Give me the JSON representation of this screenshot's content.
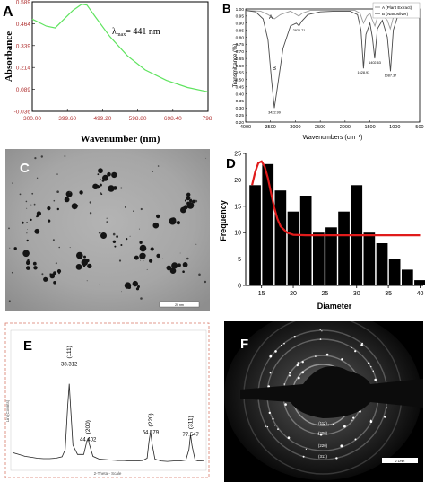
{
  "panels": {
    "a": "A",
    "b": "B",
    "c": "C",
    "d": "D",
    "e": "E",
    "f": "F"
  },
  "chart_data": [
    {
      "panel": "A",
      "type": "line",
      "xlabel": "Wavenumber (nm)",
      "ylabel": "Absorbance",
      "xlim": [
        300,
        798
      ],
      "ylim": [
        -0.036,
        0.589
      ],
      "xticks": [
        "300.00",
        "399.60",
        "499.20",
        "598.80",
        "698.40",
        "798."
      ],
      "yticks": [
        "0.589",
        "0.464",
        "0.339",
        "0.214",
        "0.089",
        "-0.036"
      ],
      "annotation": "λmax= 441 nm",
      "annotation_main": "λ",
      "annotation_sub": "max",
      "annotation_rest": "= 441 nm",
      "color": "#5fe35f",
      "x": [
        300,
        340,
        365,
        390,
        415,
        440,
        455,
        480,
        520,
        570,
        620,
        680,
        740,
        798
      ],
      "y": [
        0.49,
        0.45,
        0.44,
        0.49,
        0.54,
        0.575,
        0.57,
        0.5,
        0.39,
        0.28,
        0.2,
        0.14,
        0.1,
        0.075
      ]
    },
    {
      "panel": "B",
      "type": "line",
      "xlabel": "Wavenumbers (cm⁻¹)",
      "ylabel": "Transmittance (%)",
      "xlim": [
        4000,
        500
      ],
      "ylim": [
        0.2,
        1.0
      ],
      "xticks": [
        "4000",
        "3500",
        "3000",
        "2500",
        "2000",
        "1500",
        "1000",
        "500"
      ],
      "yticks": [
        "1.00",
        "0.95",
        "0.90",
        "0.85",
        "0.80",
        "0.75",
        "0.70",
        "0.65",
        "0.60",
        "0.55",
        "0.50",
        "0.45",
        "0.40",
        "0.35",
        "0.30",
        "0.25",
        "0.20"
      ],
      "legend": [
        "A (Plant Extract)",
        "B (Nanosilver)"
      ],
      "legend_position": "top-right",
      "curve_labels": [
        "A",
        "B"
      ],
      "peak_labels": [
        "3422.99",
        "2926.71",
        "1628.93",
        "1402.63",
        "1087.37"
      ],
      "series": [
        {
          "name": "A (Plant Extract)",
          "color": "#9a9a9a",
          "x": [
            4000,
            3700,
            3550,
            3420,
            3300,
            3100,
            2930,
            2860,
            2700,
            2400,
            2100,
            1800,
            1700,
            1630,
            1560,
            1500,
            1460,
            1400,
            1340,
            1250,
            1150,
            1090,
            1030,
            900,
            800,
            700,
            600,
            500
          ],
          "y": [
            0.99,
            0.985,
            0.96,
            0.93,
            0.96,
            0.985,
            0.95,
            0.97,
            0.99,
            0.99,
            0.99,
            0.99,
            0.97,
            0.9,
            0.95,
            0.97,
            0.93,
            0.88,
            0.95,
            0.96,
            0.92,
            0.86,
            0.94,
            0.97,
            0.96,
            0.95,
            0.96,
            0.97
          ]
        },
        {
          "name": "B (Nanosilver)",
          "color": "#4a4a4a",
          "x": [
            4000,
            3800,
            3650,
            3550,
            3480,
            3423,
            3360,
            3250,
            3100,
            2980,
            2927,
            2880,
            2750,
            2500,
            2200,
            1900,
            1750,
            1680,
            1629,
            1580,
            1500,
            1450,
            1403,
            1350,
            1250,
            1150,
            1087,
            1030,
            950,
            850,
            750,
            650,
            500
          ],
          "y": [
            0.99,
            0.98,
            0.93,
            0.78,
            0.5,
            0.3,
            0.45,
            0.72,
            0.88,
            0.9,
            0.88,
            0.91,
            0.96,
            0.98,
            0.985,
            0.985,
            0.96,
            0.85,
            0.58,
            0.82,
            0.9,
            0.8,
            0.65,
            0.86,
            0.92,
            0.8,
            0.56,
            0.85,
            0.94,
            0.96,
            0.95,
            0.97,
            0.98
          ]
        }
      ]
    },
    {
      "panel": "D",
      "type": "bar",
      "xlabel": "Diameter",
      "ylabel": "Frequency",
      "xlim": [
        12.5,
        40.5
      ],
      "ylim": [
        0,
        25
      ],
      "xticks": [
        15,
        20,
        25,
        30,
        35,
        40
      ],
      "yticks": [
        0,
        5,
        10,
        15,
        20,
        25
      ],
      "bar_width": 1.8,
      "bar_centers": [
        14,
        16,
        18,
        20,
        22,
        24,
        26,
        28,
        30,
        32,
        34,
        36,
        38,
        40
      ],
      "values": [
        19,
        23,
        18,
        14,
        17,
        10,
        11,
        14,
        19,
        10,
        8,
        5,
        3,
        1
      ],
      "fit": {
        "color": "#e01b1b",
        "x": [
          13.5,
          14,
          14.5,
          15,
          15.5,
          16,
          16.5,
          17,
          17.5,
          18,
          19,
          20,
          22,
          26,
          30,
          35,
          40
        ],
        "y": [
          19,
          21.5,
          23.2,
          23.5,
          22.5,
          20.3,
          17.5,
          14.8,
          12.6,
          11.2,
          10,
          9.6,
          9.5,
          9.5,
          9.5,
          9.5,
          9.5
        ]
      }
    },
    {
      "panel": "E",
      "type": "line",
      "xlabel": "2-Theta - Scale",
      "ylabel": "Lin (Counts)",
      "xlim": [
        20,
        82
      ],
      "ylim": [
        0,
        290
      ],
      "color": "#222222",
      "peak_labels": [
        {
          "hkl": "(111)",
          "value": "38.312",
          "x": 38.312,
          "y": 230
        },
        {
          "hkl": "(200)",
          "value": "44.402",
          "x": 44.402,
          "y": 70
        },
        {
          "hkl": "(220)",
          "value": "64.579",
          "x": 64.579,
          "y": 85
        },
        {
          "hkl": "(311)",
          "value": "77.547",
          "x": 77.547,
          "y": 80
        }
      ],
      "x": [
        20,
        22,
        24,
        26,
        28,
        30,
        32,
        34,
        36,
        37,
        37.8,
        38.3,
        38.8,
        39.5,
        41,
        43,
        43.9,
        44.4,
        44.9,
        46,
        48,
        50,
        52,
        54,
        56,
        58,
        60,
        62,
        63.5,
        64.1,
        64.6,
        65.1,
        66,
        68,
        70,
        72,
        74,
        76,
        77,
        77.5,
        78,
        79,
        80,
        82
      ],
      "y": [
        34,
        30,
        26,
        24,
        22,
        21,
        21,
        22,
        25,
        40,
        130,
        180,
        125,
        50,
        30,
        30,
        55,
        64,
        50,
        26,
        20,
        19,
        18,
        17,
        17,
        16,
        16,
        17,
        22,
        58,
        78,
        52,
        20,
        16,
        15,
        16,
        16,
        18,
        40,
        72,
        48,
        18,
        16,
        17
      ]
    }
  ],
  "panel_c": {
    "scale_bar": "20 nm"
  },
  "panel_f": {
    "rings": [
      "(111)",
      "(200)",
      "(220)",
      "(311)"
    ],
    "scale_bar": "2 1/nm"
  }
}
